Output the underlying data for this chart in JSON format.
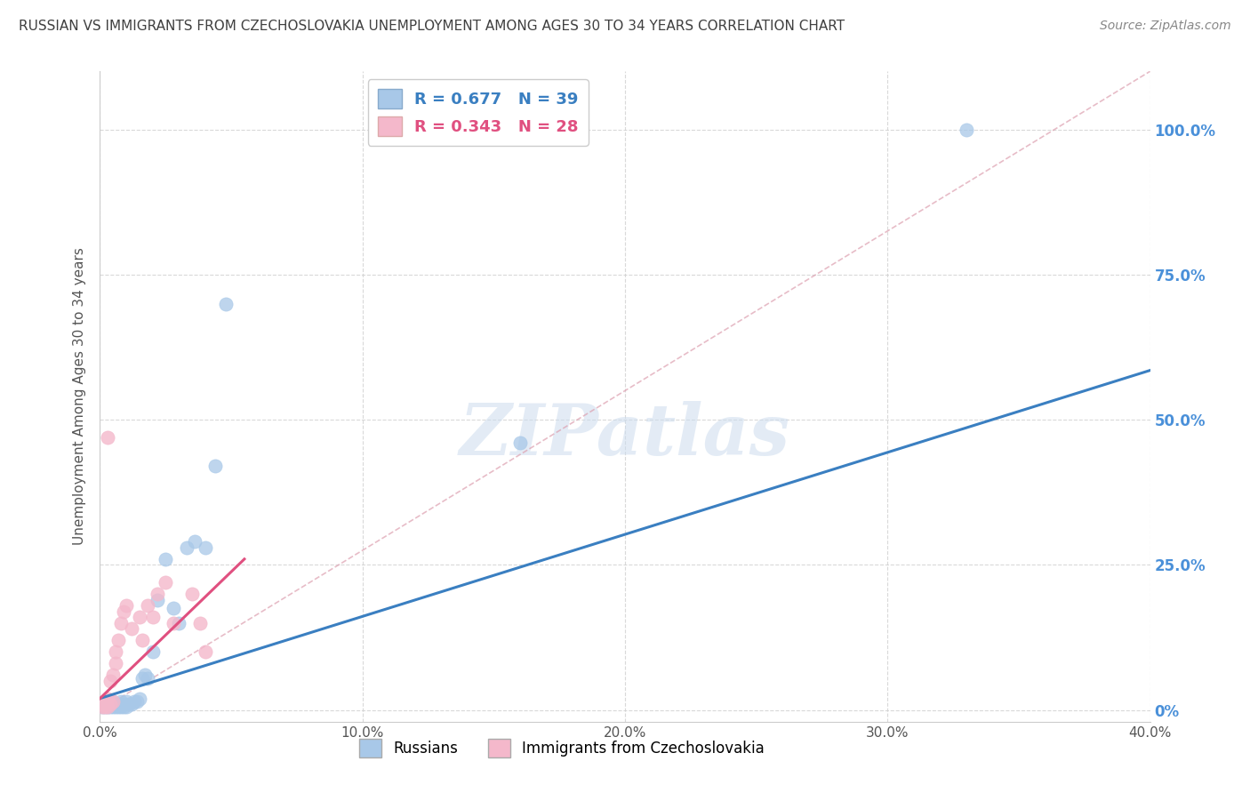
{
  "title": "RUSSIAN VS IMMIGRANTS FROM CZECHOSLOVAKIA UNEMPLOYMENT AMONG AGES 30 TO 34 YEARS CORRELATION CHART",
  "source": "Source: ZipAtlas.com",
  "ylabel": "Unemployment Among Ages 30 to 34 years",
  "xlim": [
    0.0,
    0.4
  ],
  "ylim": [
    -0.02,
    1.1
  ],
  "xticks": [
    0.0,
    0.1,
    0.2,
    0.3,
    0.4
  ],
  "yticks": [
    0.0,
    0.25,
    0.5,
    0.75,
    1.0
  ],
  "ytick_labels_right": [
    "0%",
    "25.0%",
    "50.0%",
    "75.0%",
    "100.0%"
  ],
  "xtick_labels": [
    "0.0%",
    "10.0%",
    "20.0%",
    "30.0%",
    "40.0%"
  ],
  "background_color": "#ffffff",
  "watermark_text": "ZIPatlas",
  "legend_R1": "R = 0.677",
  "legend_N1": "N = 39",
  "legend_R2": "R = 0.343",
  "legend_N2": "N = 28",
  "blue_scatter_color": "#a8c8e8",
  "pink_scatter_color": "#f4b8cb",
  "blue_line_color": "#3a7fc1",
  "pink_line_color": "#e05080",
  "diag_color": "#e8b8c8",
  "grid_color": "#d0d0d0",
  "title_color": "#404040",
  "right_tick_color": "#4a90d9",
  "russians_x": [
    0.001,
    0.002,
    0.003,
    0.003,
    0.004,
    0.004,
    0.005,
    0.005,
    0.005,
    0.006,
    0.006,
    0.007,
    0.007,
    0.008,
    0.008,
    0.009,
    0.009,
    0.01,
    0.01,
    0.011,
    0.012,
    0.013,
    0.014,
    0.015,
    0.016,
    0.017,
    0.018,
    0.02,
    0.022,
    0.025,
    0.028,
    0.03,
    0.033,
    0.036,
    0.04,
    0.044,
    0.048,
    0.16,
    0.33
  ],
  "russians_y": [
    0.005,
    0.005,
    0.005,
    0.01,
    0.005,
    0.01,
    0.005,
    0.01,
    0.015,
    0.005,
    0.01,
    0.005,
    0.01,
    0.005,
    0.015,
    0.005,
    0.01,
    0.005,
    0.015,
    0.01,
    0.01,
    0.015,
    0.015,
    0.02,
    0.055,
    0.06,
    0.055,
    0.1,
    0.19,
    0.26,
    0.175,
    0.15,
    0.28,
    0.29,
    0.28,
    0.42,
    0.7,
    0.46,
    1.0
  ],
  "czech_x": [
    0.001,
    0.001,
    0.002,
    0.002,
    0.003,
    0.003,
    0.004,
    0.004,
    0.005,
    0.005,
    0.006,
    0.006,
    0.007,
    0.008,
    0.009,
    0.01,
    0.012,
    0.015,
    0.016,
    0.018,
    0.02,
    0.022,
    0.025,
    0.028,
    0.035,
    0.038,
    0.04,
    0.003
  ],
  "czech_y": [
    0.005,
    0.01,
    0.005,
    0.015,
    0.005,
    0.02,
    0.01,
    0.05,
    0.015,
    0.06,
    0.08,
    0.1,
    0.12,
    0.15,
    0.17,
    0.18,
    0.14,
    0.16,
    0.12,
    0.18,
    0.16,
    0.2,
    0.22,
    0.15,
    0.2,
    0.15,
    0.1,
    0.47
  ],
  "blue_trendline_x": [
    0.0,
    0.4
  ],
  "blue_trendline_y": [
    0.02,
    0.585
  ],
  "pink_trendline_x": [
    0.0,
    0.055
  ],
  "pink_trendline_y": [
    0.02,
    0.26
  ],
  "diag_line_x": [
    0.0,
    0.4
  ],
  "diag_line_y": [
    0.0,
    1.1
  ]
}
